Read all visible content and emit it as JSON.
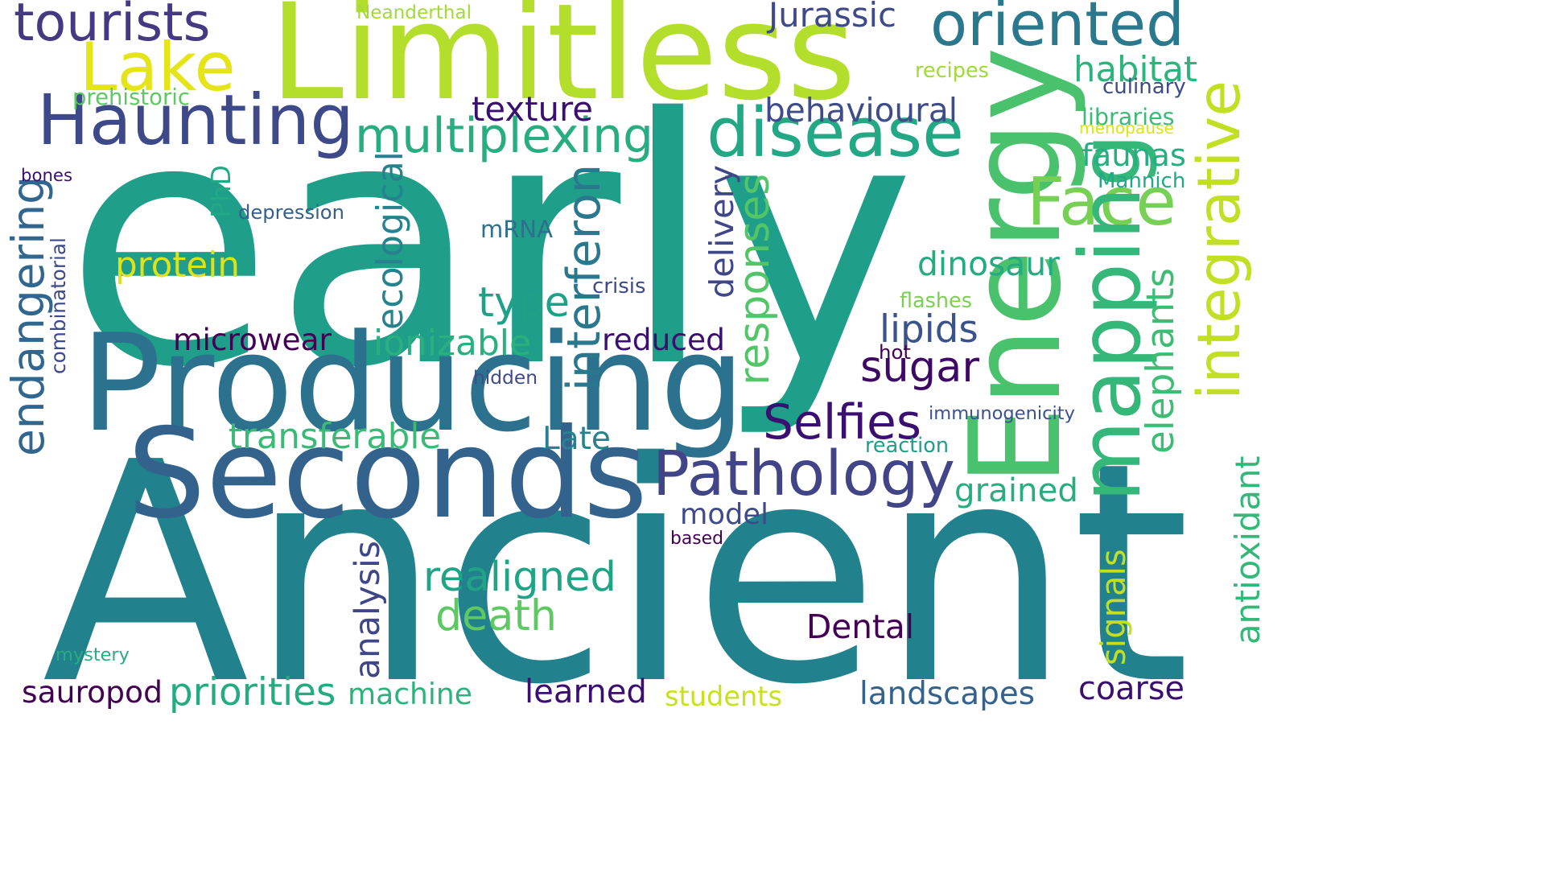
{
  "words": [
    {
      "id": "ancient",
      "text": "Ancient",
      "color": "#21818c"
    },
    {
      "id": "early",
      "text": "early",
      "color": "#1f9e89"
    },
    {
      "id": "limitless",
      "text": "Limitless",
      "color": "#b4de2c"
    },
    {
      "id": "producing",
      "text": "Producing",
      "color": "#2c728e"
    },
    {
      "id": "seconds",
      "text": "Seconds",
      "color": "#33638d"
    },
    {
      "id": "energy",
      "text": "Energy",
      "color": "#4ac16d"
    },
    {
      "id": "haunting",
      "text": "Haunting",
      "color": "#3e4989"
    },
    {
      "id": "pathology",
      "text": "Pathology",
      "color": "#414487"
    },
    {
      "id": "disease",
      "text": "disease",
      "color": "#22a884"
    },
    {
      "id": "oriented",
      "text": "oriented",
      "color": "#2a788e"
    },
    {
      "id": "integrative",
      "text": "integrative",
      "color": "#c2df23"
    },
    {
      "id": "face",
      "text": "Face",
      "color": "#75d054"
    },
    {
      "id": "mapping",
      "text": "mapping",
      "color": "#35b779"
    },
    {
      "id": "lake",
      "text": "Lake",
      "color": "#e5e419"
    },
    {
      "id": "tourists",
      "text": "tourists",
      "color": "#443a83"
    },
    {
      "id": "multiplexing",
      "text": "multiplexing",
      "color": "#27ad81"
    },
    {
      "id": "interferon",
      "text": "interferon",
      "color": "#2a788e"
    },
    {
      "id": "endangering",
      "text": "endangering",
      "color": "#31668e"
    },
    {
      "id": "realigned",
      "text": "realigned",
      "color": "#20a486"
    },
    {
      "id": "death",
      "text": "death",
      "color": "#5ec962"
    },
    {
      "id": "selfies",
      "text": "Selfies",
      "color": "#3b0f70"
    },
    {
      "id": "sugar",
      "text": "sugar",
      "color": "#3d0965"
    },
    {
      "id": "responses",
      "text": "responses",
      "color": "#52c569"
    },
    {
      "id": "elephants",
      "text": "elephants",
      "color": "#3dbc74"
    },
    {
      "id": "type",
      "text": "type",
      "color": "#1fa187"
    },
    {
      "id": "transferable",
      "text": "transferable",
      "color": "#3aba76"
    },
    {
      "id": "texture",
      "text": "texture",
      "color": "#3b0f70"
    },
    {
      "id": "behavioural",
      "text": "behavioural",
      "color": "#3e4c8a"
    },
    {
      "id": "habitat",
      "text": "habitat",
      "color": "#2eb37c"
    },
    {
      "id": "faunas",
      "text": "faunas",
      "color": "#26ad81"
    },
    {
      "id": "dinosaur",
      "text": "dinosaur",
      "color": "#25ab82"
    },
    {
      "id": "lipids",
      "text": "lipids",
      "color": "#3a538b"
    },
    {
      "id": "grained",
      "text": "grained",
      "color": "#27ad81"
    },
    {
      "id": "protein",
      "text": "protein",
      "color": "#dde318"
    },
    {
      "id": "mrna",
      "text": "mRNA",
      "color": "#2d708e"
    },
    {
      "id": "microwear",
      "text": "microwear",
      "color": "#440154"
    },
    {
      "id": "ionizable",
      "text": "ionizable",
      "color": "#2ab07f"
    },
    {
      "id": "reduced",
      "text": "reduced",
      "color": "#3b0f70"
    },
    {
      "id": "late",
      "text": "Late",
      "color": "#26828e"
    },
    {
      "id": "model",
      "text": "model",
      "color": "#3e4a89"
    },
    {
      "id": "dental",
      "text": "Dental",
      "color": "#440154"
    },
    {
      "id": "jurassic",
      "text": "Jurassic",
      "color": "#3e4a89"
    },
    {
      "id": "ecological",
      "text": "ecological",
      "color": "#26828e"
    },
    {
      "id": "delivery",
      "text": "delivery",
      "color": "#3f4788"
    },
    {
      "id": "phd",
      "text": "PhD",
      "color": "#22a884"
    },
    {
      "id": "analysis",
      "text": "analysis",
      "color": "#3f4788"
    },
    {
      "id": "signals",
      "text": "signals",
      "color": "#c2df23"
    },
    {
      "id": "antioxidant",
      "text": "antioxidant",
      "color": "#35b779"
    },
    {
      "id": "sauropod",
      "text": "sauropod",
      "color": "#440154"
    },
    {
      "id": "priorities",
      "text": "priorities",
      "color": "#25ab82"
    },
    {
      "id": "machine",
      "text": "machine",
      "color": "#2db27d"
    },
    {
      "id": "learned",
      "text": "learned",
      "color": "#3b0f70"
    },
    {
      "id": "students",
      "text": "students",
      "color": "#c8e020"
    },
    {
      "id": "landscapes",
      "text": "landscapes",
      "color": "#33638d"
    },
    {
      "id": "coarse",
      "text": "coarse",
      "color": "#3b0f70"
    },
    {
      "id": "neanderthal",
      "text": "Neanderthal",
      "color": "#a2da37"
    },
    {
      "id": "prehistoric",
      "text": "prehistoric",
      "color": "#5ec962"
    },
    {
      "id": "recipes",
      "text": "recipes",
      "color": "#a0da39"
    },
    {
      "id": "culinary",
      "text": "culinary",
      "color": "#3e4a89"
    },
    {
      "id": "libraries",
      "text": "libraries",
      "color": "#3aba76"
    },
    {
      "id": "menopause",
      "text": "menopause",
      "color": "#dde318"
    },
    {
      "id": "mannich",
      "text": "Mannich",
      "color": "#22a884"
    },
    {
      "id": "bones",
      "text": "bones",
      "color": "#3b0f70"
    },
    {
      "id": "depression",
      "text": "depression",
      "color": "#355f8d"
    },
    {
      "id": "combinatorial",
      "text": "combinatorial",
      "color": "#3e4a89"
    },
    {
      "id": "crisis",
      "text": "crisis",
      "color": "#3e4a89"
    },
    {
      "id": "flashes",
      "text": "flashes",
      "color": "#7ad151"
    },
    {
      "id": "hot",
      "text": "hot",
      "color": "#440154"
    },
    {
      "id": "hidden",
      "text": "hidden",
      "color": "#3e4a89"
    },
    {
      "id": "immunogenicity",
      "text": "immunogenicity",
      "color": "#3a538b"
    },
    {
      "id": "reaction",
      "text": "reaction",
      "color": "#1f9e89"
    },
    {
      "id": "based",
      "text": "based",
      "color": "#440154"
    },
    {
      "id": "mystery",
      "text": "mystery",
      "color": "#27ad81"
    }
  ]
}
